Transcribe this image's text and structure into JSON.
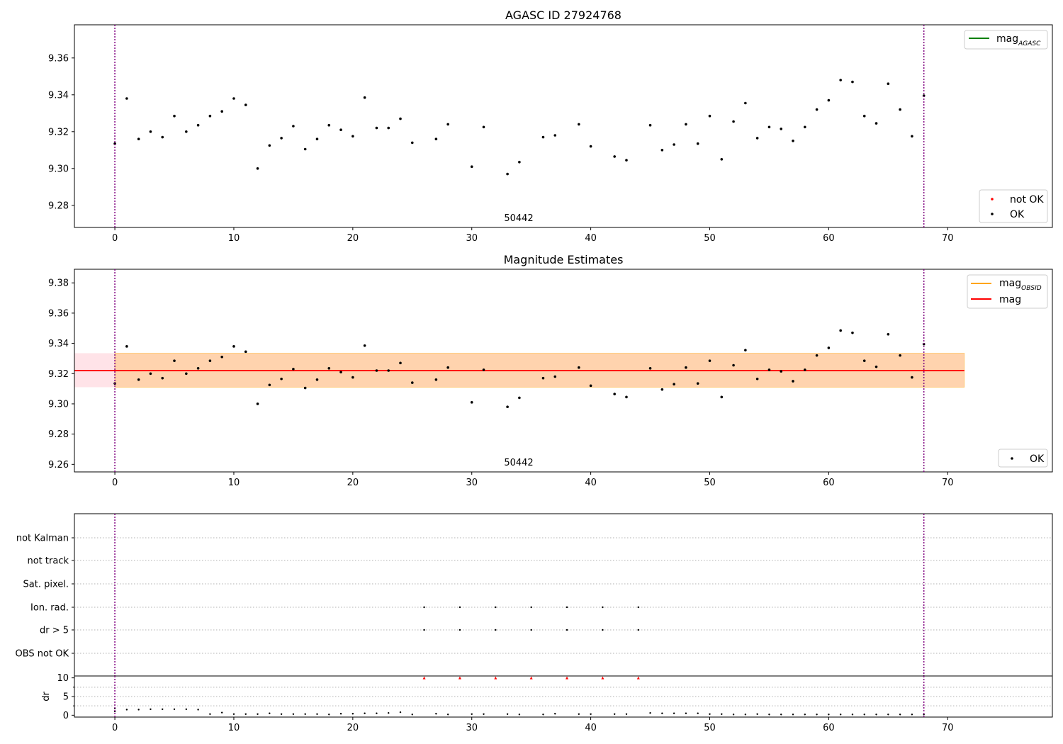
{
  "chart_data": [
    {
      "type": "scatter",
      "title": "AGASC ID 27924768",
      "obsid_label": "50442",
      "xlim": [
        -3.4,
        78.8
      ],
      "ylim": [
        9.268,
        9.378
      ],
      "xticks": [
        0,
        10,
        20,
        30,
        40,
        50,
        60,
        70
      ],
      "yticks": [
        9.28,
        9.3,
        9.32,
        9.34,
        9.36
      ],
      "vlines": [
        0,
        68
      ],
      "legend_upper": [
        {
          "label": "mag",
          "sub": "AGASC",
          "color": "#008000"
        }
      ],
      "legend_lower": [
        {
          "label": "not OK",
          "color": "#ff0000"
        },
        {
          "label": "OK",
          "color": "#000000"
        }
      ],
      "series": [
        {
          "name": "OK",
          "color": "#000000",
          "x": [
            0,
            1,
            2,
            3,
            4,
            5,
            6,
            7,
            8,
            9,
            10,
            11,
            12,
            13,
            14,
            15,
            16,
            17,
            18,
            19,
            20,
            21,
            22,
            23,
            24,
            25,
            27,
            28,
            30,
            31,
            33,
            34,
            36,
            37,
            39,
            40,
            42,
            43,
            45,
            46,
            47,
            48,
            49,
            50,
            51,
            52,
            53,
            54,
            55,
            56,
            57,
            58,
            59,
            60,
            61,
            62,
            63,
            64,
            65,
            66,
            67,
            68
          ],
          "y": [
            9.3135,
            9.338,
            9.316,
            9.32,
            9.317,
            9.3285,
            9.32,
            9.3235,
            9.3285,
            9.331,
            9.338,
            9.3345,
            9.3,
            9.3125,
            9.3165,
            9.323,
            9.3105,
            9.316,
            9.3235,
            9.321,
            9.3175,
            9.3385,
            9.322,
            9.322,
            9.327,
            9.314,
            9.316,
            9.324,
            9.301,
            9.3225,
            9.297,
            9.3035,
            9.317,
            9.318,
            9.324,
            9.312,
            9.3065,
            9.3045,
            9.3235,
            9.31,
            9.313,
            9.324,
            9.3135,
            9.3285,
            9.305,
            9.3255,
            9.3355,
            9.3165,
            9.3225,
            9.3215,
            9.315,
            9.3225,
            9.332,
            9.337,
            9.348,
            9.347,
            9.3285,
            9.3245,
            9.346,
            9.332,
            9.3175,
            9.3395
          ]
        }
      ]
    },
    {
      "type": "scatter",
      "title": "Magnitude Estimates",
      "obsid_label": "50442",
      "xlim": [
        -3.4,
        78.8
      ],
      "ylim": [
        9.255,
        9.389
      ],
      "xticks": [
        0,
        10,
        20,
        30,
        40,
        50,
        60,
        70
      ],
      "yticks": [
        9.26,
        9.28,
        9.3,
        9.32,
        9.34,
        9.36,
        9.38
      ],
      "vlines": [
        0,
        68
      ],
      "mag": 9.322,
      "mag_band": [
        9.311,
        9.3335
      ],
      "band_x": [
        -3.4,
        71.4
      ],
      "obsid_band_x": [
        0,
        71.4
      ],
      "legend_upper": [
        {
          "label": "mag",
          "sub": "OBSID",
          "color": "#ffa500"
        },
        {
          "label": "mag",
          "sub": "",
          "color": "#ff0000"
        }
      ],
      "legend_lower": [
        {
          "label": "OK",
          "color": "#000000"
        }
      ],
      "series": [
        {
          "name": "OK",
          "color": "#000000",
          "x": [
            0,
            1,
            2,
            3,
            4,
            5,
            6,
            7,
            8,
            9,
            10,
            11,
            12,
            13,
            14,
            15,
            16,
            17,
            18,
            19,
            20,
            21,
            22,
            23,
            24,
            25,
            27,
            28,
            30,
            31,
            33,
            34,
            36,
            37,
            39,
            40,
            42,
            43,
            45,
            46,
            47,
            48,
            49,
            50,
            51,
            52,
            53,
            54,
            55,
            56,
            57,
            58,
            59,
            60,
            61,
            62,
            63,
            64,
            65,
            66,
            67,
            68
          ],
          "y": [
            9.3135,
            9.338,
            9.316,
            9.32,
            9.317,
            9.3285,
            9.32,
            9.3235,
            9.3285,
            9.331,
            9.338,
            9.3345,
            9.3,
            9.3125,
            9.3165,
            9.323,
            9.3105,
            9.316,
            9.3235,
            9.321,
            9.3175,
            9.3385,
            9.322,
            9.322,
            9.327,
            9.314,
            9.316,
            9.324,
            9.301,
            9.3225,
            9.298,
            9.304,
            9.317,
            9.318,
            9.324,
            9.312,
            9.3065,
            9.3045,
            9.3235,
            9.3095,
            9.313,
            9.324,
            9.3135,
            9.3285,
            9.3045,
            9.3255,
            9.3355,
            9.3165,
            9.3225,
            9.3215,
            9.315,
            9.3225,
            9.332,
            9.337,
            9.3485,
            9.347,
            9.3285,
            9.3245,
            9.346,
            9.332,
            9.3175,
            9.3395
          ]
        }
      ]
    },
    {
      "type": "scatter",
      "xlim": [
        -3.4,
        78.8
      ],
      "xticks": [
        0,
        10,
        20,
        30,
        40,
        50,
        60,
        70
      ],
      "vlines": [
        0,
        68
      ],
      "flag_rows": [
        "not Kalman",
        "not track",
        "Sat. pixel.",
        "Ion. rad.",
        "dr > 5",
        "OBS not OK"
      ],
      "flags": {
        "Ion. rad.": [
          26,
          29,
          32,
          35,
          38,
          41,
          44
        ],
        "dr > 5": [
          26,
          29,
          32,
          35,
          38,
          41,
          44
        ]
      }
    },
    {
      "type": "scatter",
      "ylabel": "dr",
      "xlim": [
        -3.4,
        78.8
      ],
      "ylim": [
        -0.5,
        10.5
      ],
      "xticks": [
        0,
        10,
        20,
        30,
        40,
        50,
        60,
        70
      ],
      "yticks": [
        0,
        5,
        10
      ],
      "vlines": [
        0,
        68
      ],
      "dr_x": [
        0,
        0,
        1,
        2,
        3,
        4,
        5,
        6,
        7,
        8,
        9,
        10,
        11,
        12,
        13,
        14,
        15,
        16,
        17,
        18,
        19,
        20,
        21,
        22,
        23,
        24,
        25,
        27,
        28,
        30,
        31,
        33,
        34,
        36,
        37,
        39,
        40,
        42,
        43,
        45,
        46,
        47,
        48,
        49,
        50,
        51,
        52,
        53,
        54,
        55,
        56,
        57,
        58,
        59,
        60,
        61,
        62,
        63,
        64,
        65,
        66,
        67,
        68
      ],
      "dr_y": [
        1.0,
        1.8,
        1.5,
        1.5,
        1.6,
        1.6,
        1.6,
        1.6,
        1.5,
        0.3,
        0.7,
        0.3,
        0.3,
        0.3,
        0.5,
        0.3,
        0.3,
        0.3,
        0.3,
        0.2,
        0.4,
        0.4,
        0.5,
        0.5,
        0.6,
        0.8,
        0.2,
        0.4,
        0.2,
        0.3,
        0.3,
        0.3,
        0.2,
        0.2,
        0.4,
        0.3,
        0.3,
        0.3,
        0.3,
        0.6,
        0.5,
        0.5,
        0.5,
        0.5,
        0.3,
        0.3,
        0.2,
        0.2,
        0.3,
        0.2,
        0.2,
        0.2,
        0.2,
        0.2,
        0.2,
        0.2,
        0.2,
        0.2,
        0.2,
        0.2,
        0.2,
        0.2,
        0.2
      ],
      "dr_clipped_x": [
        26,
        29,
        32,
        35,
        38,
        41,
        44
      ],
      "dr_clipped_y": 10
    }
  ],
  "colors": {
    "vline": "#800080",
    "flag_grid": "#b0b0b0",
    "band_agasc": "#ffc0cb",
    "band_obsid": "#ffa500"
  }
}
